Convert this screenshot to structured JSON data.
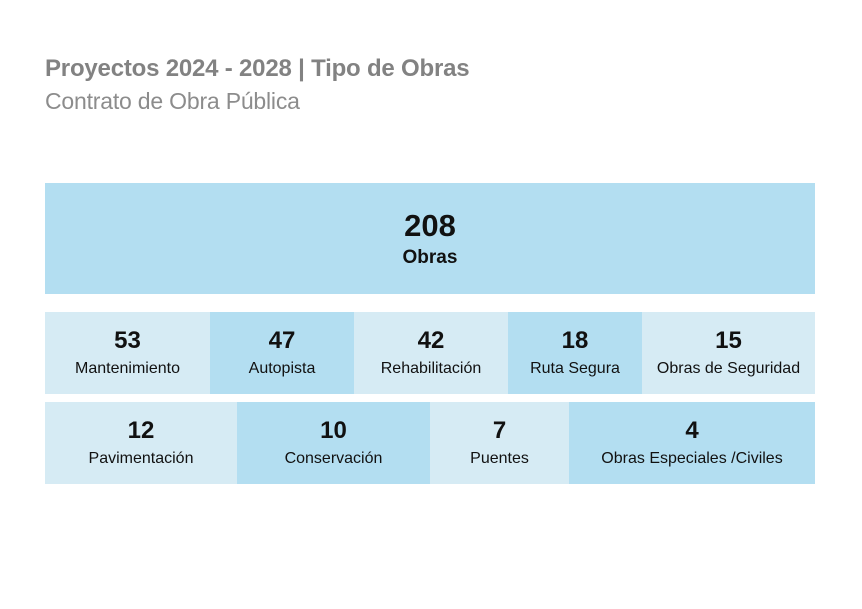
{
  "header": {
    "title": "Proyectos 2024 - 2028 | Tipo de Obras",
    "subtitle": "Contrato de Obra Pública"
  },
  "colors": {
    "dark_tile": "#b3def1",
    "light_tile": "#d6ebf4",
    "title_text": "#828282",
    "value_text": "#111111"
  },
  "chart_data": {
    "type": "treemap",
    "title": "Proyectos 2024 - 2028 | Tipo de Obras",
    "subtitle": "Contrato de Obra Pública",
    "total": {
      "value": 208,
      "label": "Obras"
    },
    "rows": [
      [
        {
          "value": 53,
          "label": "Mantenimiento",
          "shade": "light"
        },
        {
          "value": 47,
          "label": "Autopista",
          "shade": "dark"
        },
        {
          "value": 42,
          "label": "Rehabilitación",
          "shade": "light"
        },
        {
          "value": 18,
          "label": "Ruta Segura",
          "shade": "dark"
        },
        {
          "value": 15,
          "label": "Obras de Seguridad",
          "shade": "light"
        }
      ],
      [
        {
          "value": 12,
          "label": "Pavimentación",
          "shade": "light"
        },
        {
          "value": 10,
          "label": "Conservación",
          "shade": "dark"
        },
        {
          "value": 7,
          "label": "Puentes",
          "shade": "light"
        },
        {
          "value": 4,
          "label": "Obras Especiales /Civiles",
          "shade": "dark"
        }
      ]
    ]
  }
}
